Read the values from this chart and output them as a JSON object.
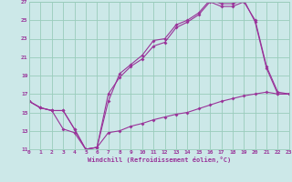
{
  "xlabel": "Windchill (Refroidissement éolien,°C)",
  "background_color": "#cce8e8",
  "grid_color": "#99ccbb",
  "line_color": "#993399",
  "xmin": 0,
  "xmax": 23,
  "ymin": 11,
  "ymax": 27,
  "yticks": [
    11,
    13,
    15,
    17,
    19,
    21,
    23,
    25,
    27
  ],
  "xticks": [
    0,
    1,
    2,
    3,
    4,
    5,
    6,
    7,
    8,
    9,
    10,
    11,
    12,
    13,
    14,
    15,
    16,
    17,
    18,
    19,
    20,
    21,
    22,
    23
  ],
  "series1_x": [
    0,
    1,
    2,
    3,
    4,
    5,
    6,
    7,
    8,
    9,
    10,
    11,
    12,
    13,
    14,
    15,
    16,
    17,
    18,
    19,
    20,
    21,
    22,
    23
  ],
  "series1_y": [
    16.2,
    15.5,
    15.2,
    15.2,
    13.2,
    11.0,
    11.2,
    17.0,
    18.8,
    20.0,
    20.8,
    22.2,
    22.6,
    24.2,
    24.8,
    25.6,
    27.0,
    26.5,
    26.5,
    27.0,
    25.0,
    20.0,
    17.2,
    17.0
  ],
  "series2_x": [
    0,
    1,
    2,
    3,
    4,
    5,
    6,
    7,
    8,
    9,
    10,
    11,
    12,
    13,
    14,
    15,
    16,
    17,
    18,
    19,
    20,
    21,
    22,
    23
  ],
  "series2_y": [
    16.2,
    15.5,
    15.2,
    15.2,
    13.2,
    11.0,
    11.2,
    16.2,
    19.2,
    20.2,
    21.2,
    22.8,
    23.0,
    24.5,
    25.0,
    25.8,
    27.2,
    26.8,
    26.8,
    27.2,
    24.8,
    19.8,
    17.0,
    17.0
  ],
  "series3_x": [
    0,
    1,
    2,
    3,
    4,
    5,
    6,
    7,
    8,
    9,
    10,
    11,
    12,
    13,
    14,
    15,
    16,
    17,
    18,
    19,
    20,
    21,
    22,
    23
  ],
  "series3_y": [
    16.2,
    15.5,
    15.2,
    13.2,
    12.8,
    11.0,
    11.2,
    12.8,
    13.0,
    13.5,
    13.8,
    14.2,
    14.5,
    14.8,
    15.0,
    15.4,
    15.8,
    16.2,
    16.5,
    16.8,
    17.0,
    17.2,
    17.0,
    17.0
  ]
}
